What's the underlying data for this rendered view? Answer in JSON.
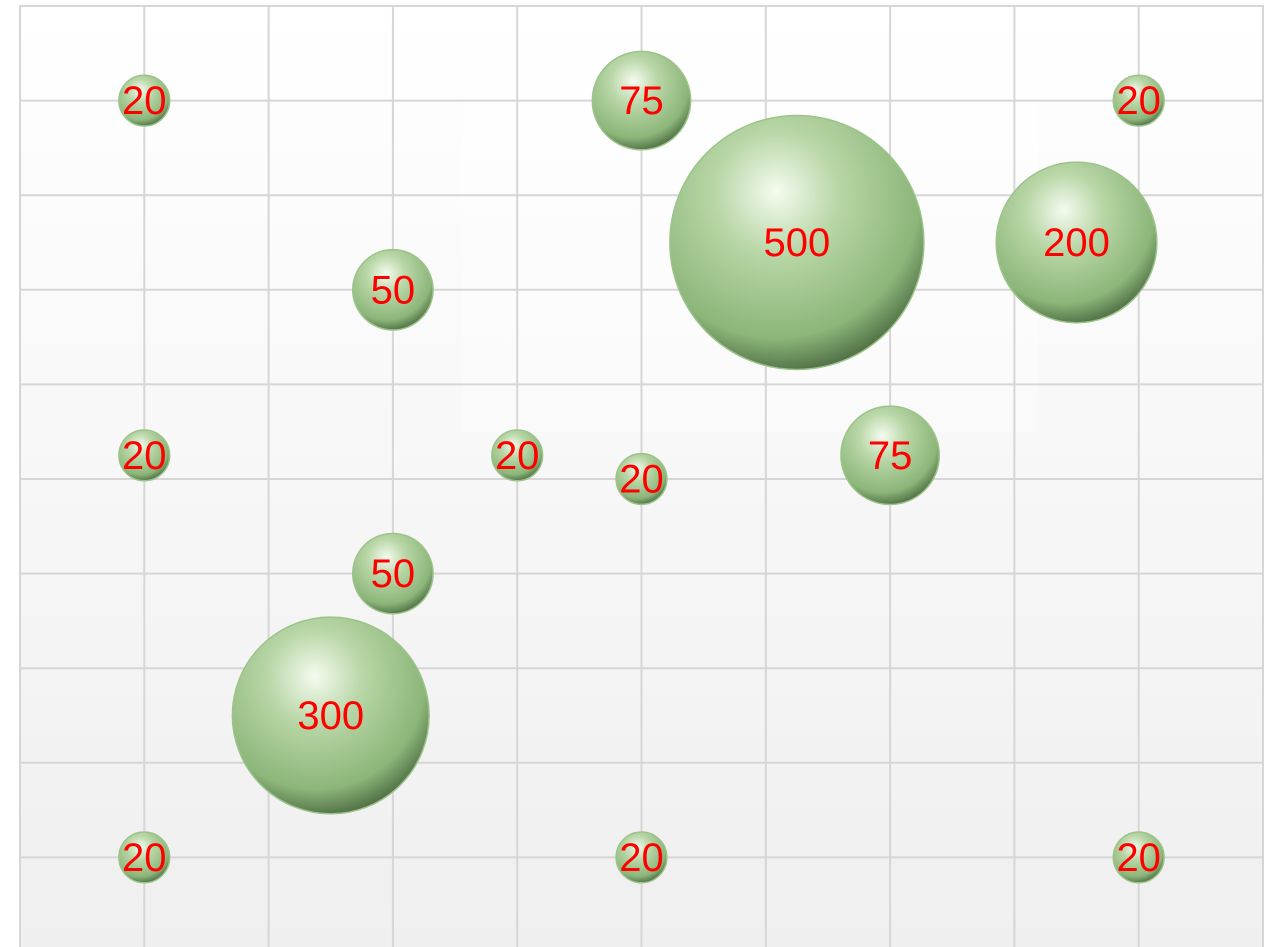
{
  "chart_data": {
    "type": "bubble",
    "xlim": [
      0,
      10
    ],
    "ylim": [
      0,
      10
    ],
    "xticks": [
      0,
      1,
      2,
      3,
      4,
      5,
      6,
      7,
      8,
      9,
      10
    ],
    "yticks": [
      0,
      1,
      2,
      3,
      4,
      5,
      6,
      7,
      8,
      9,
      10
    ],
    "grid": true,
    "label_color": "#ff0000",
    "series": [
      {
        "color": "#9cc48a",
        "x": [
          1,
          5,
          9,
          6.25,
          8.5,
          3,
          1,
          4,
          5,
          7,
          3,
          2.5,
          1,
          5,
          9
        ],
        "values": [
          9,
          9,
          9,
          7.5,
          7.5,
          7,
          5.25,
          5.25,
          5,
          5.25,
          4,
          2.5,
          1,
          1,
          1
        ],
        "sizes": [
          20,
          75,
          20,
          500,
          200,
          50,
          20,
          20,
          20,
          75,
          50,
          300,
          20,
          20,
          20
        ]
      }
    ]
  }
}
